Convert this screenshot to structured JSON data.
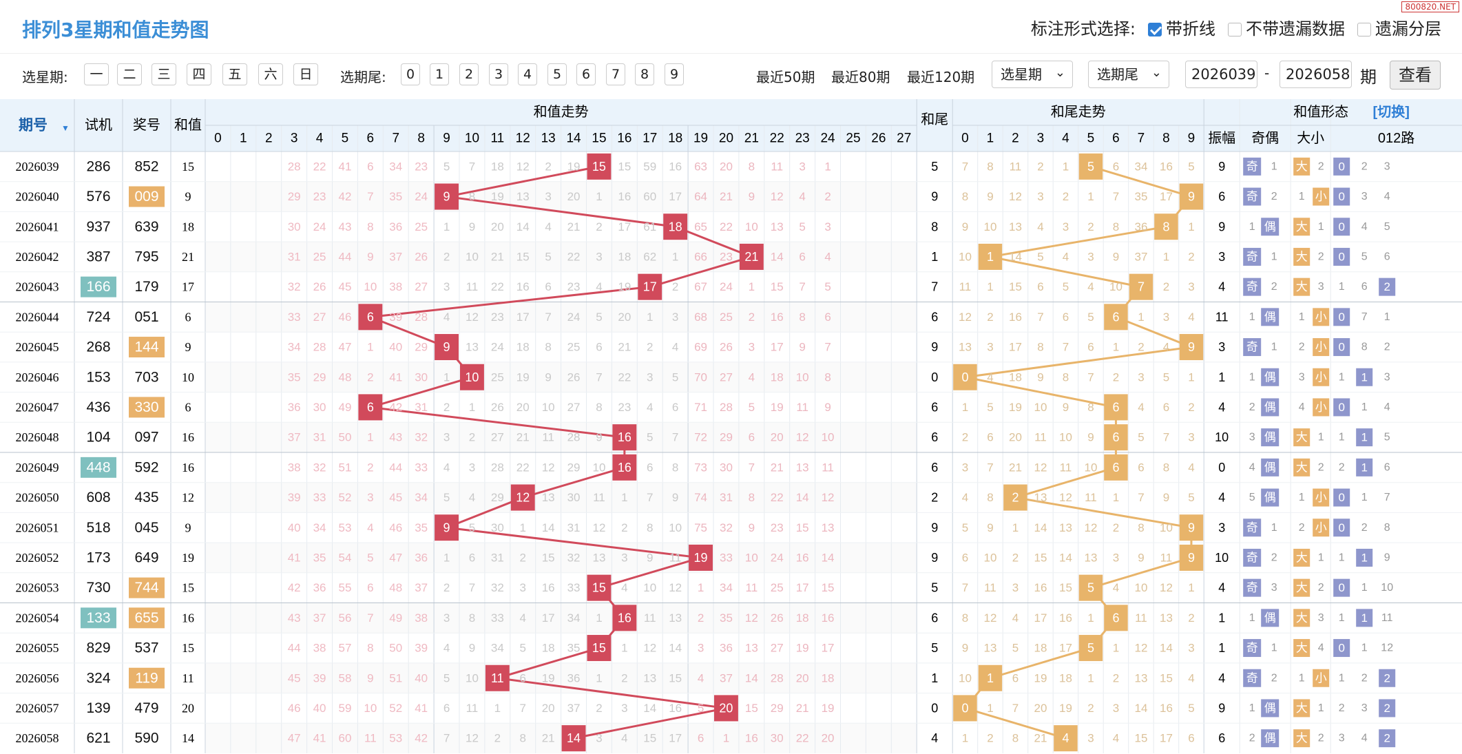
{
  "title": "排列3星期和值走势图",
  "watermark": "800820.NET",
  "markopts": {
    "label": "标注形式选择:",
    "options": [
      {
        "label": "带折线",
        "checked": true
      },
      {
        "label": "不带遗漏数据",
        "checked": false
      },
      {
        "label": "遗漏分层",
        "checked": false
      }
    ]
  },
  "filters": {
    "weekday_label": "选星期:",
    "weekdays": [
      "一",
      "二",
      "三",
      "四",
      "五",
      "六",
      "日"
    ],
    "tail_label": "选期尾:",
    "tails": [
      "0",
      "1",
      "2",
      "3",
      "4",
      "5",
      "6",
      "7",
      "8",
      "9"
    ],
    "recent": [
      "最近50期",
      "最近80期",
      "最近120期"
    ],
    "select_week": "选星期",
    "select_tail": "选期尾",
    "from": "2026039",
    "dash": "-",
    "to": "2026058",
    "period": "期",
    "query": "查看"
  },
  "colors": {
    "sum": "#d14a5b",
    "tail": "#e8b46a",
    "shape": "#8e96cc",
    "test": "#7fc0bf",
    "award": "#e9b26b",
    "header": "#eaf3fb"
  },
  "headers": {
    "period": "期号",
    "test": "试机",
    "award": "奖号",
    "sum": "和值",
    "sum_trend": "和值走势",
    "tail": "和尾",
    "tail_trend": "和尾走势",
    "shape": "和值形态",
    "switch": "[切换]",
    "amp": "振幅",
    "oe": "奇偶",
    "bs": "大小",
    "r012": "012路"
  },
  "sum_cols": [
    "0",
    "1",
    "2",
    "3",
    "4",
    "5",
    "6",
    "7",
    "8",
    "9",
    "10",
    "11",
    "12",
    "13",
    "14",
    "15",
    "16",
    "17",
    "18",
    "19",
    "20",
    "21",
    "22",
    "23",
    "24",
    "25",
    "26",
    "27"
  ],
  "tail_cols": [
    "0",
    "1",
    "2",
    "3",
    "4",
    "5",
    "6",
    "7",
    "8",
    "9"
  ],
  "labels": {
    "odd": "奇",
    "even": "偶",
    "big": "大",
    "small": "小"
  },
  "rows": [
    {
      "p": "2026039",
      "t": "286",
      "th": false,
      "a": "852",
      "ah": false,
      "s": 15,
      "amp": "9",
      "miss": [
        "",
        "",
        "",
        "28",
        "22",
        "41",
        "6",
        "34",
        "23",
        "5",
        "7",
        "18",
        "12",
        "2",
        "19",
        "",
        "15",
        "59",
        "16",
        "63",
        "20",
        "8",
        "11",
        "3",
        "1",
        "",
        "",
        ""
      ],
      "tmiss": [
        "7",
        "8",
        "11",
        "2",
        "1",
        "",
        "6",
        "34",
        "16",
        "5"
      ],
      "oe": [
        "1"
      ],
      "bs": [
        "大",
        "2"
      ],
      "r": [
        "0",
        "2",
        "3"
      ]
    },
    {
      "p": "2026040",
      "t": "576",
      "th": false,
      "a": "009",
      "ah": true,
      "s": 9,
      "amp": "6",
      "miss": [
        "",
        "",
        "",
        "29",
        "23",
        "42",
        "7",
        "35",
        "24",
        "",
        "8",
        "19",
        "13",
        "3",
        "20",
        "1",
        "16",
        "60",
        "17",
        "64",
        "21",
        "9",
        "12",
        "4",
        "2",
        "",
        "",
        ""
      ],
      "tmiss": [
        "8",
        "9",
        "12",
        "3",
        "2",
        "1",
        "7",
        "35",
        "17",
        ""
      ],
      "oe": [
        "2"
      ],
      "bs": [
        "1",
        "小"
      ],
      "r": [
        "0",
        "3",
        "4"
      ]
    },
    {
      "p": "2026041",
      "t": "937",
      "th": false,
      "a": "639",
      "ah": false,
      "s": 18,
      "amp": "9",
      "miss": [
        "",
        "",
        "",
        "30",
        "24",
        "43",
        "8",
        "36",
        "25",
        "1",
        "9",
        "20",
        "14",
        "4",
        "21",
        "2",
        "17",
        "61",
        "",
        "65",
        "22",
        "10",
        "13",
        "5",
        "3",
        "",
        "",
        ""
      ],
      "tmiss": [
        "9",
        "10",
        "13",
        "4",
        "3",
        "2",
        "8",
        "36",
        "",
        "1"
      ],
      "oe": [
        "1"
      ],
      "bs": [
        "大",
        "1"
      ],
      "r": [
        "0",
        "4",
        "5"
      ]
    },
    {
      "p": "2026042",
      "t": "387",
      "th": false,
      "a": "795",
      "ah": false,
      "s": 21,
      "amp": "3",
      "miss": [
        "",
        "",
        "",
        "31",
        "25",
        "44",
        "9",
        "37",
        "26",
        "2",
        "10",
        "21",
        "15",
        "5",
        "22",
        "3",
        "18",
        "62",
        "1",
        "66",
        "23",
        "",
        "14",
        "6",
        "4",
        "",
        "",
        ""
      ],
      "tmiss": [
        "10",
        "",
        "14",
        "5",
        "4",
        "3",
        "9",
        "37",
        "1",
        "2"
      ],
      "oe": [
        "1"
      ],
      "bs": [
        "大",
        "2"
      ],
      "r": [
        "0",
        "5",
        "6"
      ]
    },
    {
      "p": "2026043",
      "t": "166",
      "th": true,
      "a": "179",
      "ah": false,
      "s": 17,
      "amp": "4",
      "miss": [
        "",
        "",
        "",
        "32",
        "26",
        "45",
        "10",
        "38",
        "27",
        "3",
        "11",
        "22",
        "16",
        "6",
        "23",
        "4",
        "19",
        "",
        "2",
        "67",
        "24",
        "1",
        "15",
        "7",
        "5",
        "",
        "",
        ""
      ],
      "tmiss": [
        "11",
        "1",
        "15",
        "6",
        "5",
        "4",
        "10",
        "",
        "2",
        "3"
      ],
      "oe": [
        "2"
      ],
      "bs": [
        "大",
        "3"
      ],
      "r": [
        "1",
        "6",
        "2"
      ]
    },
    {
      "p": "2026044",
      "t": "724",
      "th": false,
      "a": "051",
      "ah": false,
      "s": 6,
      "amp": "11",
      "miss": [
        "",
        "",
        "",
        "33",
        "27",
        "46",
        "",
        "39",
        "28",
        "4",
        "12",
        "23",
        "17",
        "7",
        "24",
        "5",
        "20",
        "1",
        "3",
        "68",
        "25",
        "2",
        "16",
        "8",
        "6",
        "",
        "",
        ""
      ],
      "tmiss": [
        "12",
        "2",
        "16",
        "7",
        "6",
        "5",
        "",
        "1",
        "3",
        "4"
      ],
      "oe": [
        "1"
      ],
      "bs": [
        "1",
        "小"
      ],
      "r": [
        "0",
        "7",
        "1"
      ]
    },
    {
      "p": "2026045",
      "t": "268",
      "th": false,
      "a": "144",
      "ah": true,
      "s": 9,
      "amp": "3",
      "miss": [
        "",
        "",
        "",
        "34",
        "28",
        "47",
        "1",
        "40",
        "29",
        "",
        "13",
        "24",
        "18",
        "8",
        "25",
        "6",
        "21",
        "2",
        "4",
        "69",
        "26",
        "3",
        "17",
        "9",
        "7",
        "",
        "",
        ""
      ],
      "tmiss": [
        "13",
        "3",
        "17",
        "8",
        "7",
        "6",
        "1",
        "2",
        "4",
        ""
      ],
      "oe": [
        "1"
      ],
      "bs": [
        "2",
        "小"
      ],
      "r": [
        "0",
        "8",
        "2"
      ]
    },
    {
      "p": "2026046",
      "t": "153",
      "th": false,
      "a": "703",
      "ah": false,
      "s": 10,
      "amp": "1",
      "miss": [
        "",
        "",
        "",
        "35",
        "29",
        "48",
        "2",
        "41",
        "30",
        "1",
        "",
        "25",
        "19",
        "9",
        "26",
        "7",
        "22",
        "3",
        "5",
        "70",
        "27",
        "4",
        "18",
        "10",
        "8",
        "",
        "",
        ""
      ],
      "tmiss": [
        "",
        "4",
        "18",
        "9",
        "8",
        "7",
        "2",
        "3",
        "5",
        "1"
      ],
      "oe": [
        "1"
      ],
      "bs": [
        "3",
        "小"
      ],
      "r": [
        "1",
        "1",
        "3"
      ]
    },
    {
      "p": "2026047",
      "t": "436",
      "th": false,
      "a": "330",
      "ah": true,
      "s": 6,
      "amp": "4",
      "miss": [
        "",
        "",
        "",
        "36",
        "30",
        "49",
        "",
        "42",
        "31",
        "2",
        "1",
        "26",
        "20",
        "10",
        "27",
        "8",
        "23",
        "4",
        "6",
        "71",
        "28",
        "5",
        "19",
        "11",
        "9",
        "",
        "",
        ""
      ],
      "tmiss": [
        "1",
        "5",
        "19",
        "10",
        "9",
        "8",
        "",
        "4",
        "6",
        "2"
      ],
      "oe": [
        "2"
      ],
      "bs": [
        "4",
        "小"
      ],
      "r": [
        "0",
        "1",
        "4"
      ]
    },
    {
      "p": "2026048",
      "t": "104",
      "th": false,
      "a": "097",
      "ah": false,
      "s": 16,
      "amp": "10",
      "miss": [
        "",
        "",
        "",
        "37",
        "31",
        "50",
        "1",
        "43",
        "32",
        "3",
        "2",
        "27",
        "21",
        "11",
        "28",
        "9",
        "",
        "5",
        "7",
        "72",
        "29",
        "6",
        "20",
        "12",
        "10",
        "",
        "",
        ""
      ],
      "tmiss": [
        "2",
        "6",
        "20",
        "11",
        "10",
        "9",
        "",
        "5",
        "7",
        "3"
      ],
      "oe": [
        "3"
      ],
      "bs": [
        "大",
        "1"
      ],
      "r": [
        "1",
        "1",
        "5"
      ]
    },
    {
      "p": "2026049",
      "t": "448",
      "th": true,
      "a": "592",
      "ah": false,
      "s": 16,
      "amp": "0",
      "miss": [
        "",
        "",
        "",
        "38",
        "32",
        "51",
        "2",
        "44",
        "33",
        "4",
        "3",
        "28",
        "22",
        "12",
        "29",
        "10",
        "",
        "6",
        "8",
        "73",
        "30",
        "7",
        "21",
        "13",
        "11",
        "",
        "",
        ""
      ],
      "tmiss": [
        "3",
        "7",
        "21",
        "12",
        "11",
        "10",
        "",
        "6",
        "8",
        "4"
      ],
      "oe": [
        "4"
      ],
      "bs": [
        "大",
        "2"
      ],
      "r": [
        "2",
        "1",
        "6"
      ]
    },
    {
      "p": "2026050",
      "t": "608",
      "th": false,
      "a": "435",
      "ah": false,
      "s": 12,
      "amp": "4",
      "miss": [
        "",
        "",
        "",
        "39",
        "33",
        "52",
        "3",
        "45",
        "34",
        "5",
        "4",
        "29",
        "",
        "13",
        "30",
        "11",
        "1",
        "7",
        "9",
        "74",
        "31",
        "8",
        "22",
        "14",
        "12",
        "",
        "",
        ""
      ],
      "tmiss": [
        "4",
        "8",
        "",
        "13",
        "12",
        "11",
        "1",
        "7",
        "9",
        "5"
      ],
      "oe": [
        "5"
      ],
      "bs": [
        "1",
        "小"
      ],
      "r": [
        "0",
        "1",
        "7"
      ]
    },
    {
      "p": "2026051",
      "t": "518",
      "th": false,
      "a": "045",
      "ah": false,
      "s": 9,
      "amp": "3",
      "miss": [
        "",
        "",
        "",
        "40",
        "34",
        "53",
        "4",
        "46",
        "35",
        "",
        "5",
        "30",
        "1",
        "14",
        "31",
        "12",
        "2",
        "8",
        "10",
        "75",
        "32",
        "9",
        "23",
        "15",
        "13",
        "",
        "",
        ""
      ],
      "tmiss": [
        "5",
        "9",
        "1",
        "14",
        "13",
        "12",
        "2",
        "8",
        "10",
        ""
      ],
      "oe": [
        "1"
      ],
      "bs": [
        "2",
        "小"
      ],
      "r": [
        "0",
        "2",
        "8"
      ]
    },
    {
      "p": "2026052",
      "t": "173",
      "th": false,
      "a": "649",
      "ah": false,
      "s": 19,
      "amp": "10",
      "miss": [
        "",
        "",
        "",
        "41",
        "35",
        "54",
        "5",
        "47",
        "36",
        "1",
        "6",
        "31",
        "2",
        "15",
        "32",
        "13",
        "3",
        "9",
        "11",
        "",
        "33",
        "10",
        "24",
        "16",
        "14",
        "",
        "",
        ""
      ],
      "tmiss": [
        "6",
        "10",
        "2",
        "15",
        "14",
        "13",
        "3",
        "9",
        "11",
        ""
      ],
      "oe": [
        "2"
      ],
      "bs": [
        "大",
        "1"
      ],
      "r": [
        "1",
        "1",
        "9"
      ]
    },
    {
      "p": "2026053",
      "t": "730",
      "th": false,
      "a": "744",
      "ah": true,
      "s": 15,
      "amp": "4",
      "miss": [
        "",
        "",
        "",
        "42",
        "36",
        "55",
        "6",
        "48",
        "37",
        "2",
        "7",
        "32",
        "3",
        "16",
        "33",
        "",
        "4",
        "10",
        "12",
        "1",
        "34",
        "11",
        "25",
        "17",
        "15",
        "",
        "",
        ""
      ],
      "tmiss": [
        "7",
        "11",
        "3",
        "16",
        "15",
        "",
        "4",
        "10",
        "12",
        "1"
      ],
      "oe": [
        "3"
      ],
      "bs": [
        "大",
        "2"
      ],
      "r": [
        "0",
        "1",
        "10"
      ]
    },
    {
      "p": "2026054",
      "t": "133",
      "th": true,
      "a": "655",
      "ah": true,
      "s": 16,
      "amp": "1",
      "miss": [
        "",
        "",
        "",
        "43",
        "37",
        "56",
        "7",
        "49",
        "38",
        "3",
        "8",
        "33",
        "4",
        "17",
        "34",
        "1",
        "",
        "11",
        "13",
        "2",
        "35",
        "12",
        "26",
        "18",
        "16",
        "",
        "",
        ""
      ],
      "tmiss": [
        "8",
        "12",
        "4",
        "17",
        "16",
        "1",
        "",
        "11",
        "13",
        "2"
      ],
      "oe": [
        "1"
      ],
      "bs": [
        "大",
        "3"
      ],
      "r": [
        "1",
        "1",
        "11"
      ]
    },
    {
      "p": "2026055",
      "t": "829",
      "th": false,
      "a": "537",
      "ah": false,
      "s": 15,
      "amp": "1",
      "miss": [
        "",
        "",
        "",
        "44",
        "38",
        "57",
        "8",
        "50",
        "39",
        "4",
        "9",
        "34",
        "5",
        "18",
        "35",
        "",
        "1",
        "12",
        "14",
        "3",
        "36",
        "13",
        "27",
        "19",
        "17",
        "",
        "",
        ""
      ],
      "tmiss": [
        "9",
        "13",
        "5",
        "18",
        "17",
        "",
        "1",
        "12",
        "14",
        "3"
      ],
      "oe": [
        "1"
      ],
      "bs": [
        "大",
        "4"
      ],
      "r": [
        "0",
        "1",
        "12"
      ]
    },
    {
      "p": "2026056",
      "t": "324",
      "th": false,
      "a": "119",
      "ah": true,
      "s": 11,
      "amp": "4",
      "miss": [
        "",
        "",
        "",
        "45",
        "39",
        "58",
        "9",
        "51",
        "40",
        "5",
        "10",
        "",
        "6",
        "19",
        "36",
        "1",
        "2",
        "13",
        "15",
        "4",
        "37",
        "14",
        "28",
        "20",
        "18",
        "",
        "",
        ""
      ],
      "tmiss": [
        "10",
        "",
        "6",
        "19",
        "18",
        "1",
        "2",
        "13",
        "15",
        "4"
      ],
      "oe": [
        "2"
      ],
      "bs": [
        "1",
        "小"
      ],
      "r": [
        "1",
        "2",
        "2"
      ]
    },
    {
      "p": "2026057",
      "t": "139",
      "th": false,
      "a": "479",
      "ah": false,
      "s": 20,
      "amp": "9",
      "miss": [
        "",
        "",
        "",
        "46",
        "40",
        "59",
        "10",
        "52",
        "41",
        "6",
        "11",
        "1",
        "7",
        "20",
        "37",
        "2",
        "3",
        "14",
        "16",
        "5",
        "",
        "15",
        "29",
        "21",
        "19",
        "",
        "",
        ""
      ],
      "tmiss": [
        "",
        "1",
        "7",
        "20",
        "19",
        "2",
        "3",
        "14",
        "16",
        "5"
      ],
      "oe": [
        "1"
      ],
      "bs": [
        "大",
        "1"
      ],
      "r": [
        "2",
        "3",
        "2"
      ]
    },
    {
      "p": "2026058",
      "t": "621",
      "th": false,
      "a": "590",
      "ah": false,
      "s": 14,
      "amp": "6",
      "miss": [
        "",
        "",
        "",
        "47",
        "41",
        "60",
        "11",
        "53",
        "42",
        "7",
        "12",
        "2",
        "8",
        "21",
        "",
        "3",
        "4",
        "15",
        "17",
        "6",
        "1",
        "16",
        "30",
        "22",
        "20",
        "",
        "",
        ""
      ],
      "tmiss": [
        "1",
        "2",
        "8",
        "21",
        "",
        "3",
        "4",
        "15",
        "17",
        "6"
      ],
      "oe": [
        "2"
      ],
      "bs": [
        "大",
        "2"
      ],
      "r": [
        "3",
        "4",
        "2"
      ]
    }
  ]
}
